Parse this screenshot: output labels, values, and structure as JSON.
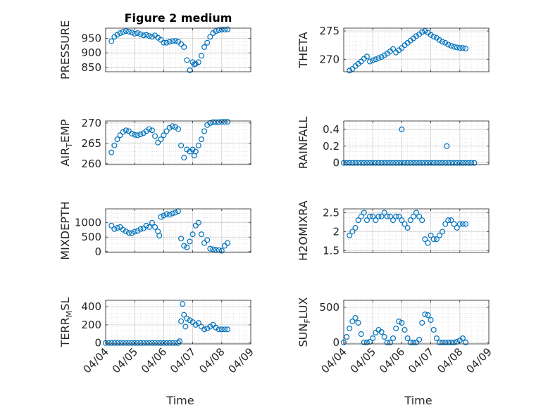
{
  "figure_title": "Figure 2 medium",
  "colors": {
    "marker": "#0072BD",
    "grid": "#e6e6e6",
    "axis": "#262626"
  },
  "chart_data": [
    {
      "id": "pressure",
      "type": "scatter",
      "title": "Figure 2 medium",
      "ylabel": "PRESSURE",
      "ylim": [
        835,
        985
      ],
      "yticks": [
        850,
        900,
        950
      ],
      "x": [
        0.2,
        0.3,
        0.4,
        0.5,
        0.6,
        0.7,
        0.8,
        0.9,
        1.0,
        1.1,
        1.2,
        1.3,
        1.4,
        1.5,
        1.6,
        1.7,
        1.8,
        1.9,
        2.0,
        2.1,
        2.2,
        2.3,
        2.4,
        2.5,
        2.6,
        2.7,
        2.8,
        2.9,
        3.0,
        3.05,
        3.1,
        3.2,
        3.3,
        3.4,
        3.5,
        3.6,
        3.7,
        3.8,
        3.9,
        4.0,
        4.1,
        4.2
      ],
      "values": [
        940,
        955,
        962,
        968,
        972,
        975,
        973,
        970,
        966,
        968,
        964,
        960,
        962,
        958,
        955,
        960,
        952,
        945,
        935,
        935,
        938,
        940,
        941,
        938,
        930,
        920,
        875,
        840,
        868,
        860,
        862,
        868,
        890,
        920,
        935,
        955,
        968,
        975,
        978,
        980,
        980,
        981
      ]
    },
    {
      "id": "theta",
      "type": "scatter",
      "ylabel": "THETA",
      "ylim": [
        267.8,
        275.5
      ],
      "yticks": [
        270,
        275
      ],
      "x": [
        0.2,
        0.3,
        0.4,
        0.5,
        0.6,
        0.7,
        0.8,
        0.9,
        1.0,
        1.1,
        1.2,
        1.3,
        1.4,
        1.5,
        1.6,
        1.7,
        1.8,
        1.9,
        2.0,
        2.1,
        2.2,
        2.3,
        2.4,
        2.5,
        2.6,
        2.7,
        2.8,
        2.9,
        3.0,
        3.1,
        3.2,
        3.3,
        3.4,
        3.5,
        3.6,
        3.7,
        3.8,
        3.9,
        4.0,
        4.1,
        4.2
      ],
      "values": [
        268,
        268.3,
        268.8,
        269.2,
        269.6,
        270.1,
        270.5,
        269.6,
        269.8,
        270,
        270.2,
        270.4,
        270.7,
        271,
        271.4,
        271.8,
        271.2,
        271.6,
        272,
        272.5,
        272.9,
        273.3,
        273.7,
        274.1,
        274.4,
        274.8,
        275,
        274.7,
        274.3,
        274,
        273.8,
        273.4,
        273.1,
        272.9,
        272.6,
        272.4,
        272.2,
        272.1,
        272,
        272,
        271.9
      ]
    },
    {
      "id": "air_temp",
      "type": "scatter",
      "ylabel_main": "AIR",
      "ylabel_sub": "T",
      "ylabel_rest": "EMP",
      "ylim": [
        259.8,
        270.5
      ],
      "yticks": [
        260,
        265,
        270
      ],
      "x": [
        0.2,
        0.3,
        0.4,
        0.5,
        0.6,
        0.7,
        0.8,
        0.9,
        1.0,
        1.1,
        1.2,
        1.3,
        1.4,
        1.5,
        1.6,
        1.7,
        1.8,
        1.9,
        2.0,
        2.1,
        2.2,
        2.3,
        2.4,
        2.5,
        2.6,
        2.7,
        2.8,
        2.9,
        3.0,
        3.05,
        3.1,
        3.2,
        3.3,
        3.4,
        3.5,
        3.6,
        3.7,
        3.8,
        3.9,
        4.0,
        4.1,
        4.2
      ],
      "values": [
        262.8,
        264.5,
        266,
        267,
        267.8,
        268.2,
        268,
        267.4,
        267.1,
        267,
        267.2,
        267.5,
        268,
        268.5,
        268.2,
        266.8,
        265.2,
        266,
        267,
        268,
        268.8,
        269.2,
        269,
        268.5,
        264.5,
        261.5,
        263.5,
        263,
        263.5,
        262,
        263,
        264.5,
        266,
        268,
        269.5,
        270,
        270.2,
        270.2,
        270.2,
        270.3,
        270.3,
        270.3
      ]
    },
    {
      "id": "rainfall",
      "type": "scatter",
      "ylabel": "RAINFALL",
      "ylim": [
        -0.02,
        0.5
      ],
      "yticks": [
        0,
        0.2,
        0.4
      ],
      "x": [
        0.0,
        0.1,
        0.2,
        0.3,
        0.4,
        0.5,
        0.6,
        0.7,
        0.8,
        0.9,
        1.0,
        1.1,
        1.2,
        1.3,
        1.4,
        1.5,
        1.6,
        1.7,
        1.8,
        1.9,
        2.0,
        2.1,
        2.2,
        2.3,
        2.4,
        2.5,
        2.6,
        2.7,
        2.8,
        2.9,
        3.0,
        3.1,
        3.2,
        3.3,
        3.4,
        3.5,
        3.6,
        3.7,
        3.8,
        3.9,
        4.0,
        4.1,
        4.2,
        4.3,
        4.4,
        4.5,
        2.0,
        3.55
      ],
      "values": [
        0,
        0,
        0,
        0,
        0,
        0,
        0,
        0,
        0,
        0,
        0,
        0,
        0,
        0,
        0,
        0,
        0,
        0,
        0,
        0,
        0,
        0,
        0,
        0,
        0,
        0,
        0,
        0,
        0,
        0,
        0,
        0,
        0,
        0,
        0,
        0,
        0,
        0,
        0,
        0,
        0,
        0,
        0,
        0,
        0,
        0,
        0.4,
        0.2
      ]
    },
    {
      "id": "mixdepth",
      "type": "scatter",
      "ylabel": "MIXDEPTH",
      "ylim": [
        -30,
        1480
      ],
      "yticks": [
        0,
        500,
        1000
      ],
      "x": [
        0.2,
        0.3,
        0.4,
        0.5,
        0.6,
        0.7,
        0.8,
        0.9,
        1.0,
        1.1,
        1.2,
        1.3,
        1.4,
        1.5,
        1.6,
        1.7,
        1.8,
        1.85,
        1.9,
        2.0,
        2.1,
        2.2,
        2.3,
        2.4,
        2.5,
        2.6,
        2.7,
        2.8,
        2.9,
        3.0,
        3.1,
        3.2,
        3.3,
        3.4,
        3.5,
        3.6,
        3.7,
        3.8,
        3.9,
        4.0,
        4.1,
        4.2
      ],
      "values": [
        900,
        780,
        820,
        850,
        760,
        700,
        650,
        640,
        690,
        720,
        780,
        800,
        900,
        850,
        1000,
        850,
        700,
        550,
        1200,
        1250,
        1300,
        1280,
        1320,
        1350,
        1400,
        450,
        200,
        150,
        350,
        600,
        900,
        1000,
        600,
        300,
        400,
        100,
        80,
        60,
        50,
        30,
        200,
        300
      ]
    },
    {
      "id": "h2omixra",
      "type": "scatter",
      "ylabel": "H2OMIXRA",
      "ylim": [
        1.45,
        2.6
      ],
      "yticks": [
        1.5,
        2,
        2.5
      ],
      "x": [
        0.2,
        0.3,
        0.4,
        0.5,
        0.6,
        0.7,
        0.8,
        0.9,
        1.0,
        1.1,
        1.2,
        1.3,
        1.4,
        1.5,
        1.6,
        1.7,
        1.8,
        1.9,
        2.0,
        2.1,
        2.2,
        2.3,
        2.4,
        2.5,
        2.6,
        2.7,
        2.8,
        2.9,
        3.0,
        3.1,
        3.2,
        3.3,
        3.4,
        3.5,
        3.6,
        3.7,
        3.8,
        3.9,
        4.0,
        4.1,
        4.2
      ],
      "values": [
        1.9,
        2.0,
        2.1,
        2.3,
        2.4,
        2.5,
        2.3,
        2.4,
        2.4,
        2.3,
        2.4,
        2.4,
        2.5,
        2.4,
        2.4,
        2.3,
        2.4,
        2.4,
        2.3,
        2.2,
        2.1,
        2.3,
        2.4,
        2.5,
        2.4,
        2.3,
        1.8,
        1.7,
        1.9,
        1.8,
        1.8,
        1.9,
        2.0,
        2.2,
        2.3,
        2.3,
        2.2,
        2.1,
        2.2,
        2.2,
        2.2
      ]
    },
    {
      "id": "terr_msl",
      "type": "scatter",
      "ylabel_main": "TERR",
      "ylabel_sub": "M",
      "ylabel_rest": "SL",
      "ylim": [
        -10,
        470
      ],
      "yticks": [
        0,
        200,
        400
      ],
      "x": [
        0.0,
        0.1,
        0.2,
        0.3,
        0.4,
        0.5,
        0.6,
        0.7,
        0.8,
        0.9,
        1.0,
        1.1,
        1.2,
        1.3,
        1.4,
        1.5,
        1.6,
        1.7,
        1.8,
        1.9,
        2.0,
        2.1,
        2.2,
        2.3,
        2.4,
        2.5,
        2.55,
        2.6,
        2.65,
        2.7,
        2.75,
        2.8,
        2.9,
        3.0,
        3.1,
        3.2,
        3.3,
        3.4,
        3.5,
        3.6,
        3.7,
        3.8,
        3.9,
        4.0,
        4.1,
        4.2
      ],
      "values": [
        0,
        0,
        0,
        0,
        0,
        0,
        0,
        0,
        0,
        0,
        0,
        0,
        0,
        0,
        0,
        0,
        0,
        0,
        0,
        0,
        0,
        0,
        0,
        0,
        0,
        0,
        20,
        240,
        430,
        310,
        180,
        270,
        250,
        230,
        200,
        220,
        180,
        150,
        160,
        180,
        200,
        170,
        150,
        150,
        150,
        150
      ]
    },
    {
      "id": "sun_flux",
      "type": "scatter",
      "ylabel_main": "SUN",
      "ylabel_sub": "F",
      "ylabel_rest": "LUX",
      "ylim": [
        -20,
        600
      ],
      "yticks": [
        0,
        500
      ],
      "x": [
        0.0,
        0.1,
        0.2,
        0.3,
        0.4,
        0.5,
        0.6,
        0.7,
        0.8,
        0.9,
        1.0,
        1.1,
        1.2,
        1.3,
        1.4,
        1.5,
        1.6,
        1.7,
        1.8,
        1.9,
        2.0,
        2.1,
        2.2,
        2.3,
        2.4,
        2.5,
        2.6,
        2.7,
        2.8,
        2.9,
        3.0,
        3.1,
        3.2,
        3.3,
        3.4,
        3.5,
        3.6,
        3.7,
        3.8,
        3.9,
        4.0,
        4.1,
        4.2
      ],
      "values": [
        0,
        80,
        200,
        300,
        350,
        280,
        120,
        0,
        0,
        10,
        60,
        140,
        180,
        150,
        80,
        0,
        0,
        60,
        200,
        300,
        280,
        180,
        60,
        0,
        0,
        0,
        40,
        280,
        400,
        390,
        320,
        180,
        60,
        0,
        0,
        0,
        0,
        0,
        0,
        10,
        30,
        60,
        0
      ]
    }
  ],
  "xaxis": {
    "label": "Time",
    "ticklabels": [
      "04/04",
      "04/05",
      "04/06",
      "04/07",
      "04/08",
      "04/09"
    ],
    "ticks": [
      0,
      1,
      2,
      3,
      4,
      5
    ],
    "range": [
      0,
      5
    ]
  }
}
